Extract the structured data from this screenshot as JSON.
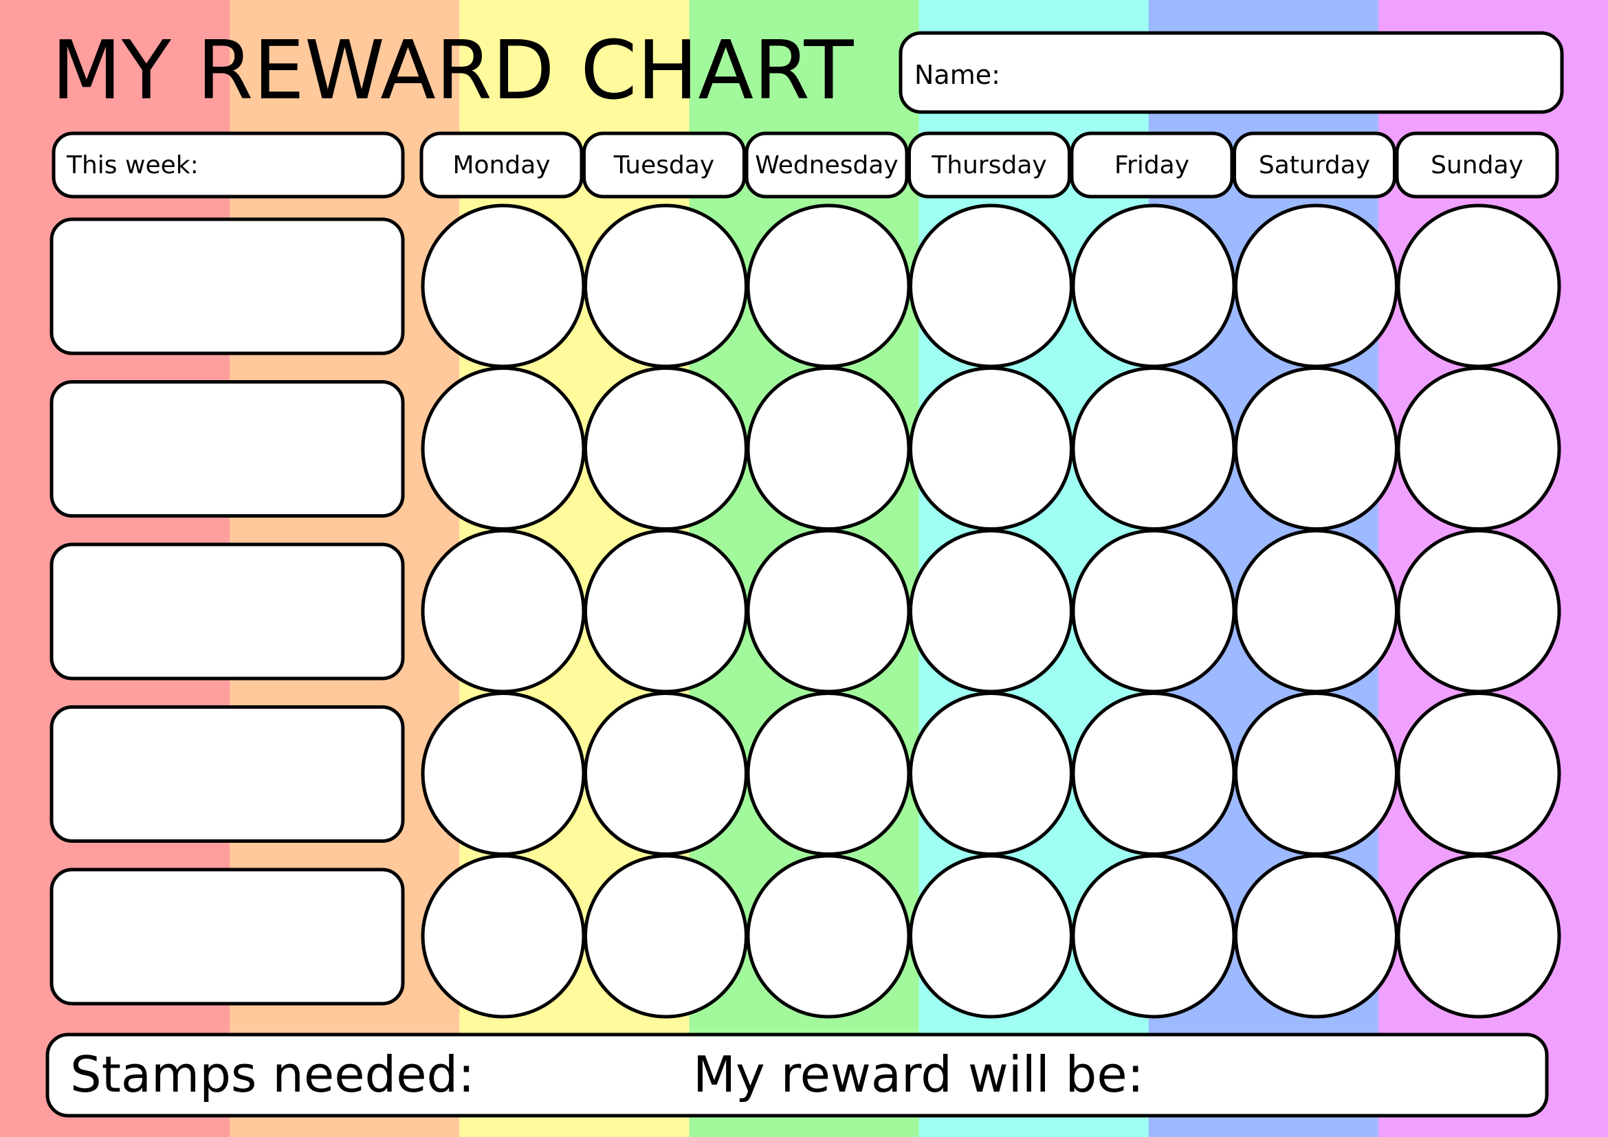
{
  "title": "MY REWARD CHART",
  "name_label": "Name:",
  "this_week_label": "This week:",
  "days": [
    "Monday",
    "Tuesday",
    "Wednesday",
    "Thursday",
    "Friday",
    "Saturday",
    "Sunday"
  ],
  "task_rows": 5,
  "footer": {
    "stamps_needed_label": "Stamps needed:",
    "reward_label": "My reward will be:"
  },
  "stripe_colors": [
    "#ff9e9e",
    "#ffc99c",
    "#fffb9c",
    "#a2f99c",
    "#9efff2",
    "#9db9ff",
    "#f0a0ff"
  ]
}
